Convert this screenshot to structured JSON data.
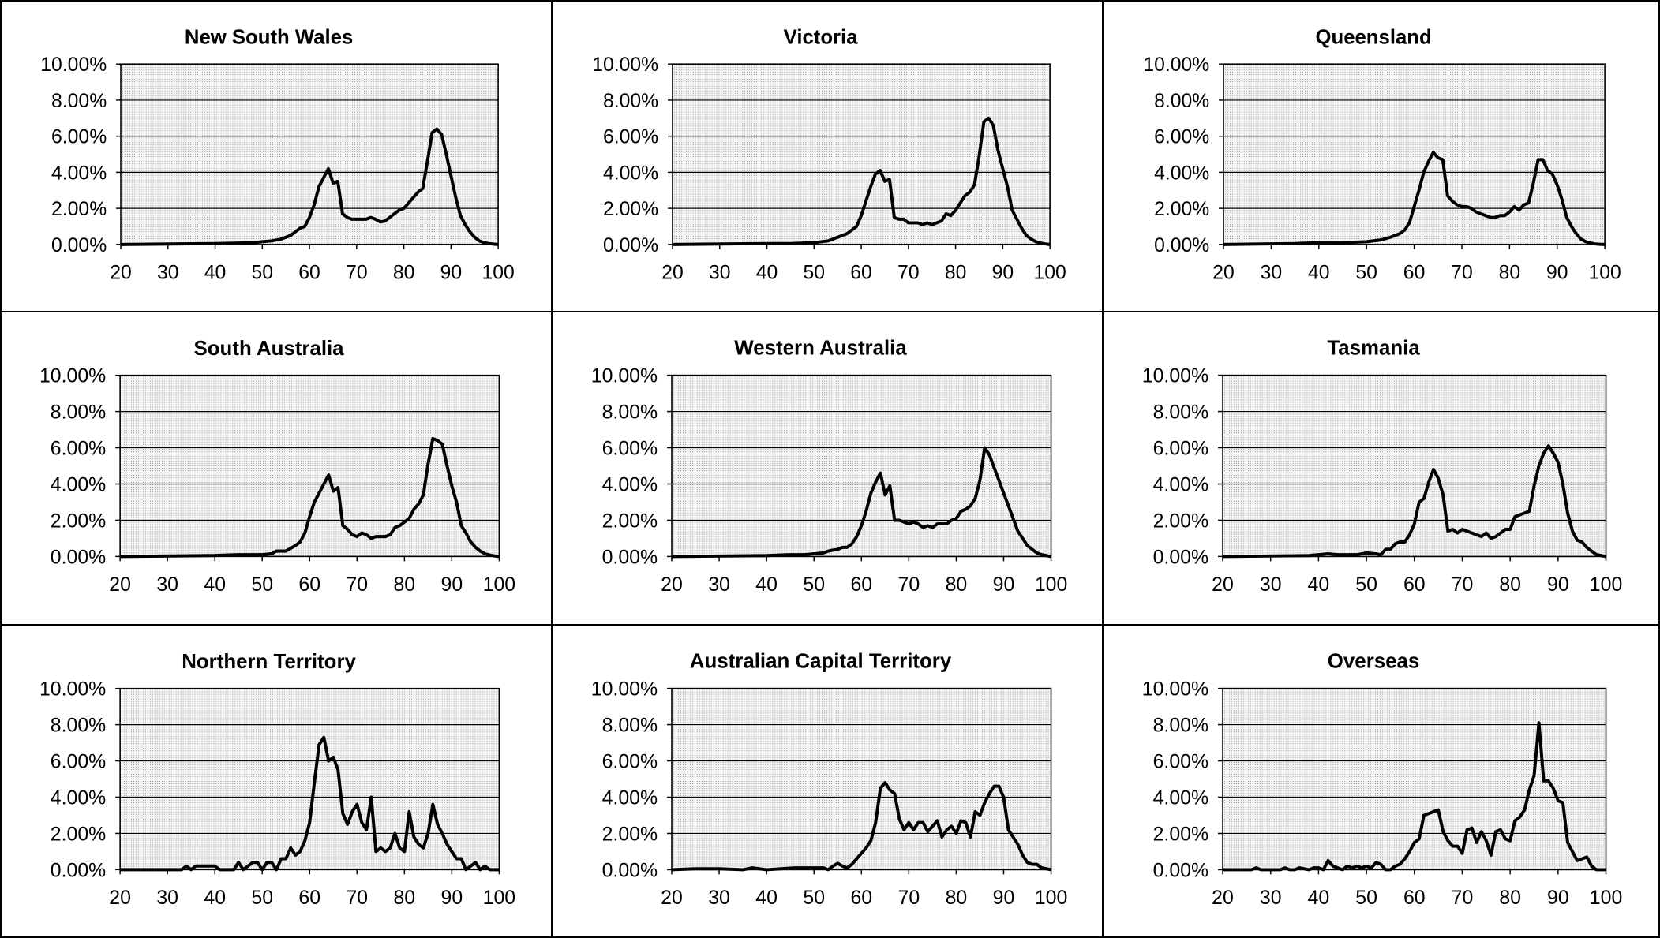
{
  "chart_data": [
    {
      "type": "line",
      "title": "New South Wales",
      "xlim": [
        20,
        100
      ],
      "ylim": [
        0,
        10
      ],
      "y_unit": "%",
      "x_ticks": [
        "20",
        "30",
        "40",
        "50",
        "60",
        "70",
        "80",
        "90",
        "100"
      ],
      "y_ticks": [
        "0.00%",
        "2.00%",
        "4.00%",
        "6.00%",
        "8.00%",
        "10.00%"
      ],
      "grid": true,
      "x": [
        20,
        40,
        45,
        48,
        50,
        52,
        54,
        56,
        57,
        58,
        59,
        60,
        61,
        62,
        63,
        64,
        65,
        66,
        67,
        68,
        69,
        70,
        71,
        72,
        73,
        74,
        75,
        76,
        77,
        78,
        79,
        80,
        81,
        82,
        83,
        84,
        85,
        86,
        87,
        88,
        89,
        90,
        91,
        92,
        93,
        94,
        95,
        96,
        97,
        98,
        99,
        100
      ],
      "y": [
        0,
        0.05,
        0.08,
        0.1,
        0.15,
        0.2,
        0.3,
        0.5,
        0.7,
        0.9,
        1.0,
        1.5,
        2.2,
        3.2,
        3.7,
        4.2,
        3.4,
        3.5,
        1.7,
        1.5,
        1.4,
        1.4,
        1.4,
        1.4,
        1.5,
        1.4,
        1.25,
        1.3,
        1.5,
        1.7,
        1.9,
        2.0,
        2.3,
        2.6,
        2.9,
        3.1,
        4.6,
        6.2,
        6.4,
        6.1,
        5.0,
        3.8,
        2.6,
        1.6,
        1.1,
        0.7,
        0.4,
        0.2,
        0.1,
        0.05,
        0.02,
        0
      ]
    },
    {
      "type": "line",
      "title": "Victoria",
      "xlim": [
        20,
        100
      ],
      "ylim": [
        0,
        10
      ],
      "y_unit": "%",
      "x_ticks": [
        "20",
        "30",
        "40",
        "50",
        "60",
        "70",
        "80",
        "90",
        "100"
      ],
      "y_ticks": [
        "0.00%",
        "2.00%",
        "4.00%",
        "6.00%",
        "8.00%",
        "10.00%"
      ],
      "grid": true,
      "x": [
        20,
        40,
        45,
        50,
        53,
        55,
        57,
        58,
        59,
        60,
        61,
        62,
        63,
        64,
        65,
        66,
        67,
        68,
        69,
        70,
        71,
        72,
        73,
        74,
        75,
        76,
        77,
        78,
        79,
        80,
        81,
        82,
        83,
        84,
        85,
        86,
        87,
        88,
        89,
        90,
        91,
        92,
        93,
        94,
        95,
        96,
        97,
        98,
        99,
        100
      ],
      "y": [
        0,
        0.05,
        0.05,
        0.1,
        0.2,
        0.4,
        0.6,
        0.8,
        1.0,
        1.6,
        2.4,
        3.2,
        3.9,
        4.1,
        3.5,
        3.6,
        1.5,
        1.4,
        1.4,
        1.2,
        1.2,
        1.2,
        1.1,
        1.2,
        1.1,
        1.2,
        1.3,
        1.7,
        1.6,
        1.9,
        2.3,
        2.7,
        2.9,
        3.3,
        4.9,
        6.8,
        7.0,
        6.6,
        5.2,
        4.2,
        3.2,
        1.9,
        1.4,
        0.9,
        0.5,
        0.3,
        0.15,
        0.08,
        0.03,
        0
      ]
    },
    {
      "type": "line",
      "title": "Queensland",
      "xlim": [
        20,
        100
      ],
      "ylim": [
        0,
        10
      ],
      "y_unit": "%",
      "x_ticks": [
        "20",
        "30",
        "40",
        "50",
        "60",
        "70",
        "80",
        "90",
        "100"
      ],
      "y_ticks": [
        "0.00%",
        "2.00%",
        "4.00%",
        "6.00%",
        "8.00%",
        "10.00%"
      ],
      "grid": true,
      "x": [
        20,
        35,
        40,
        45,
        50,
        53,
        55,
        57,
        58,
        59,
        60,
        61,
        62,
        63,
        64,
        65,
        66,
        67,
        68,
        69,
        70,
        71,
        72,
        73,
        74,
        75,
        76,
        77,
        78,
        79,
        80,
        81,
        82,
        83,
        84,
        85,
        86,
        87,
        88,
        89,
        90,
        91,
        92,
        93,
        94,
        95,
        96,
        97,
        98,
        99,
        100
      ],
      "y": [
        0,
        0.05,
        0.1,
        0.1,
        0.15,
        0.25,
        0.4,
        0.6,
        0.8,
        1.2,
        2.1,
        3.0,
        4.0,
        4.6,
        5.1,
        4.8,
        4.7,
        2.7,
        2.4,
        2.2,
        2.1,
        2.1,
        2.0,
        1.8,
        1.7,
        1.6,
        1.5,
        1.5,
        1.6,
        1.6,
        1.8,
        2.1,
        1.9,
        2.2,
        2.3,
        3.4,
        4.7,
        4.7,
        4.1,
        3.9,
        3.3,
        2.5,
        1.5,
        1.0,
        0.6,
        0.3,
        0.15,
        0.08,
        0.03,
        0.01,
        0
      ]
    },
    {
      "type": "line",
      "title": "South Australia",
      "xlim": [
        20,
        100
      ],
      "ylim": [
        0,
        10
      ],
      "y_unit": "%",
      "x_ticks": [
        "20",
        "30",
        "40",
        "50",
        "60",
        "70",
        "80",
        "90",
        "100"
      ],
      "y_ticks": [
        "0.00%",
        "2.00%",
        "4.00%",
        "6.00%",
        "8.00%",
        "10.00%"
      ],
      "grid": true,
      "x": [
        20,
        40,
        45,
        48,
        50,
        52,
        53,
        54,
        55,
        56,
        57,
        58,
        59,
        60,
        61,
        62,
        63,
        64,
        65,
        66,
        67,
        68,
        69,
        70,
        71,
        72,
        73,
        74,
        75,
        76,
        77,
        78,
        79,
        80,
        81,
        82,
        83,
        84,
        85,
        86,
        87,
        88,
        89,
        90,
        91,
        92,
        93,
        94,
        95,
        96,
        97,
        98,
        99,
        100
      ],
      "y": [
        0,
        0.05,
        0.1,
        0.1,
        0.1,
        0.15,
        0.3,
        0.3,
        0.3,
        0.45,
        0.6,
        0.8,
        1.3,
        2.2,
        3.0,
        3.5,
        4.0,
        4.5,
        3.6,
        3.8,
        1.7,
        1.5,
        1.2,
        1.1,
        1.3,
        1.2,
        1.0,
        1.1,
        1.1,
        1.1,
        1.2,
        1.6,
        1.7,
        1.9,
        2.1,
        2.6,
        2.9,
        3.4,
        5.1,
        6.5,
        6.4,
        6.2,
        5.0,
        3.9,
        3.0,
        1.7,
        1.3,
        0.8,
        0.5,
        0.3,
        0.15,
        0.08,
        0.03,
        0
      ]
    },
    {
      "type": "line",
      "title": "Western Australia",
      "xlim": [
        20,
        100
      ],
      "ylim": [
        0,
        10
      ],
      "y_unit": "%",
      "x_ticks": [
        "20",
        "30",
        "40",
        "50",
        "60",
        "70",
        "80",
        "90",
        "100"
      ],
      "y_ticks": [
        "0.00%",
        "2.00%",
        "4.00%",
        "6.00%",
        "8.00%",
        "10.00%"
      ],
      "grid": true,
      "x": [
        20,
        40,
        45,
        48,
        50,
        52,
        53,
        54,
        55,
        56,
        57,
        58,
        59,
        60,
        61,
        62,
        63,
        64,
        65,
        66,
        67,
        68,
        69,
        70,
        71,
        72,
        73,
        74,
        75,
        76,
        77,
        78,
        79,
        80,
        81,
        82,
        83,
        84,
        85,
        86,
        87,
        88,
        89,
        90,
        91,
        92,
        93,
        94,
        95,
        96,
        97,
        98,
        99,
        100
      ],
      "y": [
        0,
        0.05,
        0.1,
        0.1,
        0.15,
        0.2,
        0.3,
        0.35,
        0.4,
        0.5,
        0.5,
        0.7,
        1.1,
        1.7,
        2.5,
        3.5,
        4.1,
        4.6,
        3.4,
        3.9,
        2.0,
        2.0,
        1.9,
        1.8,
        1.9,
        1.8,
        1.6,
        1.7,
        1.6,
        1.8,
        1.8,
        1.8,
        2.0,
        2.1,
        2.5,
        2.6,
        2.8,
        3.2,
        4.2,
        6.0,
        5.6,
        4.9,
        4.2,
        3.5,
        2.8,
        2.1,
        1.4,
        1.0,
        0.6,
        0.4,
        0.2,
        0.1,
        0.05,
        0
      ]
    },
    {
      "type": "line",
      "title": "Tasmania",
      "xlim": [
        20,
        100
      ],
      "ylim": [
        0,
        10
      ],
      "y_unit": "%",
      "x_ticks": [
        "20",
        "30",
        "40",
        "50",
        "60",
        "70",
        "80",
        "90",
        "100"
      ],
      "y_ticks": [
        "0.00%",
        "2.00%",
        "4.00%",
        "6.00%",
        "8.00%",
        "10.00%"
      ],
      "grid": true,
      "x": [
        20,
        38,
        40,
        42,
        44,
        46,
        48,
        50,
        52,
        53,
        54,
        55,
        56,
        57,
        58,
        59,
        60,
        61,
        62,
        63,
        64,
        65,
        66,
        67,
        68,
        69,
        70,
        71,
        72,
        73,
        74,
        75,
        76,
        77,
        78,
        79,
        80,
        81,
        82,
        83,
        84,
        85,
        86,
        87,
        88,
        89,
        90,
        91,
        92,
        93,
        94,
        95,
        96,
        97,
        98,
        99,
        100
      ],
      "y": [
        0,
        0.05,
        0.1,
        0.15,
        0.1,
        0.1,
        0.1,
        0.2,
        0.15,
        0.1,
        0.4,
        0.4,
        0.7,
        0.8,
        0.8,
        1.2,
        1.8,
        3.0,
        3.2,
        4.1,
        4.8,
        4.3,
        3.4,
        1.4,
        1.5,
        1.3,
        1.5,
        1.4,
        1.3,
        1.2,
        1.1,
        1.3,
        1.0,
        1.1,
        1.3,
        1.5,
        1.5,
        2.2,
        2.3,
        2.4,
        2.5,
        3.9,
        5.0,
        5.7,
        6.1,
        5.7,
        5.2,
        4.0,
        2.4,
        1.4,
        0.9,
        0.8,
        0.5,
        0.3,
        0.1,
        0.05,
        0
      ]
    },
    {
      "type": "line",
      "title": "Northern Territory",
      "xlim": [
        20,
        100
      ],
      "ylim": [
        0,
        10
      ],
      "y_unit": "%",
      "x_ticks": [
        "20",
        "30",
        "40",
        "50",
        "60",
        "70",
        "80",
        "90",
        "100"
      ],
      "y_ticks": [
        "0.00%",
        "2.00%",
        "4.00%",
        "6.00%",
        "8.00%",
        "10.00%"
      ],
      "grid": true,
      "x": [
        20,
        33,
        34,
        35,
        36,
        37,
        38,
        39,
        40,
        41,
        42,
        44,
        45,
        46,
        47,
        48,
        49,
        50,
        51,
        52,
        53,
        54,
        55,
        56,
        57,
        58,
        59,
        60,
        61,
        62,
        63,
        64,
        65,
        66,
        67,
        68,
        69,
        70,
        71,
        72,
        73,
        74,
        75,
        76,
        77,
        78,
        79,
        80,
        81,
        82,
        83,
        84,
        85,
        86,
        87,
        88,
        89,
        90,
        91,
        92,
        93,
        94,
        95,
        96,
        97,
        98,
        99,
        100
      ],
      "y": [
        0,
        0,
        0.2,
        0,
        0.2,
        0.2,
        0.2,
        0.2,
        0.2,
        0,
        0,
        0,
        0.4,
        0,
        0.2,
        0.4,
        0.4,
        0,
        0.4,
        0.4,
        0,
        0.6,
        0.6,
        1.2,
        0.8,
        1.0,
        1.6,
        2.6,
        4.8,
        6.9,
        7.3,
        6.0,
        6.2,
        5.5,
        3.1,
        2.5,
        3.2,
        3.6,
        2.6,
        2.2,
        4.0,
        1.0,
        1.2,
        1.0,
        1.2,
        2.0,
        1.2,
        1.0,
        3.2,
        1.8,
        1.4,
        1.2,
        2.0,
        3.6,
        2.5,
        2.0,
        1.4,
        1.0,
        0.6,
        0.6,
        0,
        0.2,
        0.4,
        0,
        0.2,
        0,
        0,
        0
      ]
    },
    {
      "type": "line",
      "title": "Australian Capital Territory",
      "xlim": [
        20,
        100
      ],
      "ylim": [
        0,
        10
      ],
      "y_unit": "%",
      "x_ticks": [
        "20",
        "30",
        "40",
        "50",
        "60",
        "70",
        "80",
        "90",
        "100"
      ],
      "y_ticks": [
        "0.00%",
        "2.00%",
        "4.00%",
        "6.00%",
        "8.00%",
        "10.00%"
      ],
      "grid": true,
      "x": [
        20,
        25,
        30,
        35,
        37,
        40,
        43,
        46,
        48,
        50,
        52,
        53,
        54,
        55,
        56,
        57,
        58,
        59,
        60,
        61,
        62,
        63,
        64,
        65,
        66,
        67,
        68,
        69,
        70,
        71,
        72,
        73,
        74,
        75,
        76,
        77,
        78,
        79,
        80,
        81,
        82,
        83,
        84,
        85,
        86,
        87,
        88,
        89,
        90,
        91,
        92,
        93,
        94,
        95,
        96,
        97,
        98,
        99,
        100
      ],
      "y": [
        0,
        0.05,
        0.05,
        0,
        0.1,
        0,
        0.05,
        0.1,
        0.1,
        0.1,
        0.1,
        0,
        0.2,
        0.35,
        0.2,
        0.1,
        0.3,
        0.6,
        0.9,
        1.2,
        1.6,
        2.6,
        4.5,
        4.8,
        4.4,
        4.2,
        2.8,
        2.2,
        2.6,
        2.2,
        2.6,
        2.6,
        2.1,
        2.4,
        2.7,
        1.8,
        2.2,
        2.4,
        2.0,
        2.7,
        2.6,
        1.8,
        3.2,
        3.0,
        3.7,
        4.2,
        4.6,
        4.6,
        4.0,
        2.2,
        1.8,
        1.4,
        0.8,
        0.4,
        0.3,
        0.3,
        0.1,
        0.05,
        0
      ]
    },
    {
      "type": "line",
      "title": "Overseas",
      "xlim": [
        20,
        100
      ],
      "ylim": [
        0,
        10
      ],
      "y_unit": "%",
      "x_ticks": [
        "20",
        "30",
        "40",
        "50",
        "60",
        "70",
        "80",
        "90",
        "100"
      ],
      "y_ticks": [
        "0.00%",
        "2.00%",
        "4.00%",
        "6.00%",
        "8.00%",
        "10.00%"
      ],
      "grid": true,
      "x": [
        20,
        26,
        27,
        28,
        32,
        33,
        34,
        35,
        36,
        38,
        39,
        40,
        41,
        42,
        43,
        44,
        45,
        46,
        47,
        48,
        49,
        50,
        51,
        52,
        53,
        54,
        55,
        56,
        57,
        58,
        59,
        60,
        61,
        62,
        63,
        64,
        65,
        66,
        67,
        68,
        69,
        70,
        71,
        72,
        73,
        74,
        75,
        76,
        77,
        78,
        79,
        80,
        81,
        82,
        83,
        84,
        85,
        86,
        87,
        88,
        89,
        90,
        91,
        92,
        93,
        94,
        95,
        96,
        97,
        98,
        99,
        100
      ],
      "y": [
        0,
        0,
        0.1,
        0,
        0,
        0.1,
        0,
        0,
        0.1,
        0,
        0.1,
        0.1,
        0,
        0.5,
        0.2,
        0.1,
        0,
        0.2,
        0.1,
        0.2,
        0.1,
        0.2,
        0.1,
        0.4,
        0.3,
        0,
        0,
        0.2,
        0.3,
        0.6,
        1.0,
        1.5,
        1.7,
        3.0,
        3.1,
        3.2,
        3.3,
        2.1,
        1.6,
        1.3,
        1.3,
        0.9,
        2.2,
        2.3,
        1.5,
        2.1,
        1.6,
        0.8,
        2.1,
        2.2,
        1.7,
        1.6,
        2.7,
        2.9,
        3.3,
        4.4,
        5.2,
        8.1,
        4.9,
        4.9,
        4.5,
        3.8,
        3.7,
        1.5,
        1.0,
        0.5,
        0.6,
        0.7,
        0.2,
        0,
        0,
        0
      ]
    }
  ]
}
